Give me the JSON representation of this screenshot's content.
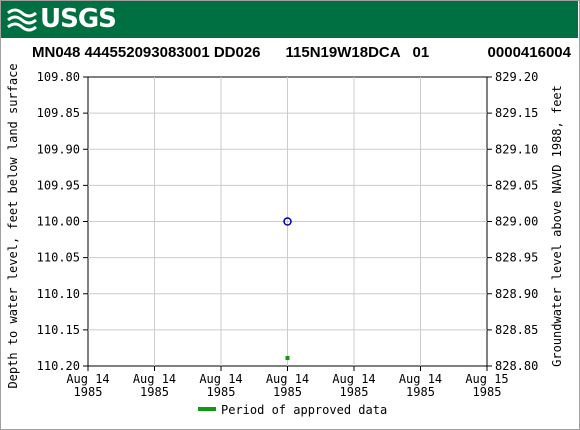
{
  "header": {
    "logo_text": "USGS",
    "title": "MN048 444552093083001 DD026      115N19W18DCA   01              0000416004"
  },
  "chart_data": {
    "type": "scatter",
    "title": "MN048 444552093083001 DD026      115N19W18DCA   01              0000416004",
    "ylabel_left": "Depth to water level, feet below land surface",
    "ylabel_right": "Groundwater level above NAVD 1988, feet",
    "ylim_left": [
      109.8,
      110.2
    ],
    "left_inverted": true,
    "ylim_right": [
      828.8,
      829.2
    ],
    "left_ticks": [
      "109.80",
      "109.85",
      "109.90",
      "109.95",
      "110.00",
      "110.05",
      "110.10",
      "110.15",
      "110.20"
    ],
    "right_ticks": [
      "829.20",
      "829.15",
      "829.10",
      "829.05",
      "829.00",
      "828.95",
      "828.90",
      "828.85",
      "828.80"
    ],
    "x_ticks": [
      {
        "line1": "Aug 14",
        "line2": "1985"
      },
      {
        "line1": "Aug 14",
        "line2": "1985"
      },
      {
        "line1": "Aug 14",
        "line2": "1985"
      },
      {
        "line1": "Aug 14",
        "line2": "1985"
      },
      {
        "line1": "Aug 14",
        "line2": "1985"
      },
      {
        "line1": "Aug 14",
        "line2": "1985"
      },
      {
        "line1": "Aug 15",
        "line2": "1985"
      }
    ],
    "grid": true,
    "points": [
      {
        "x": "Aug 14 1985",
        "depth": 110.0
      }
    ],
    "approved_periods": [
      {
        "x": "Aug 14 1985"
      }
    ],
    "point_color": "#0000aa",
    "approved_color": "#119911",
    "legend": {
      "label": "Period of approved data",
      "placement": "bottom"
    }
  }
}
